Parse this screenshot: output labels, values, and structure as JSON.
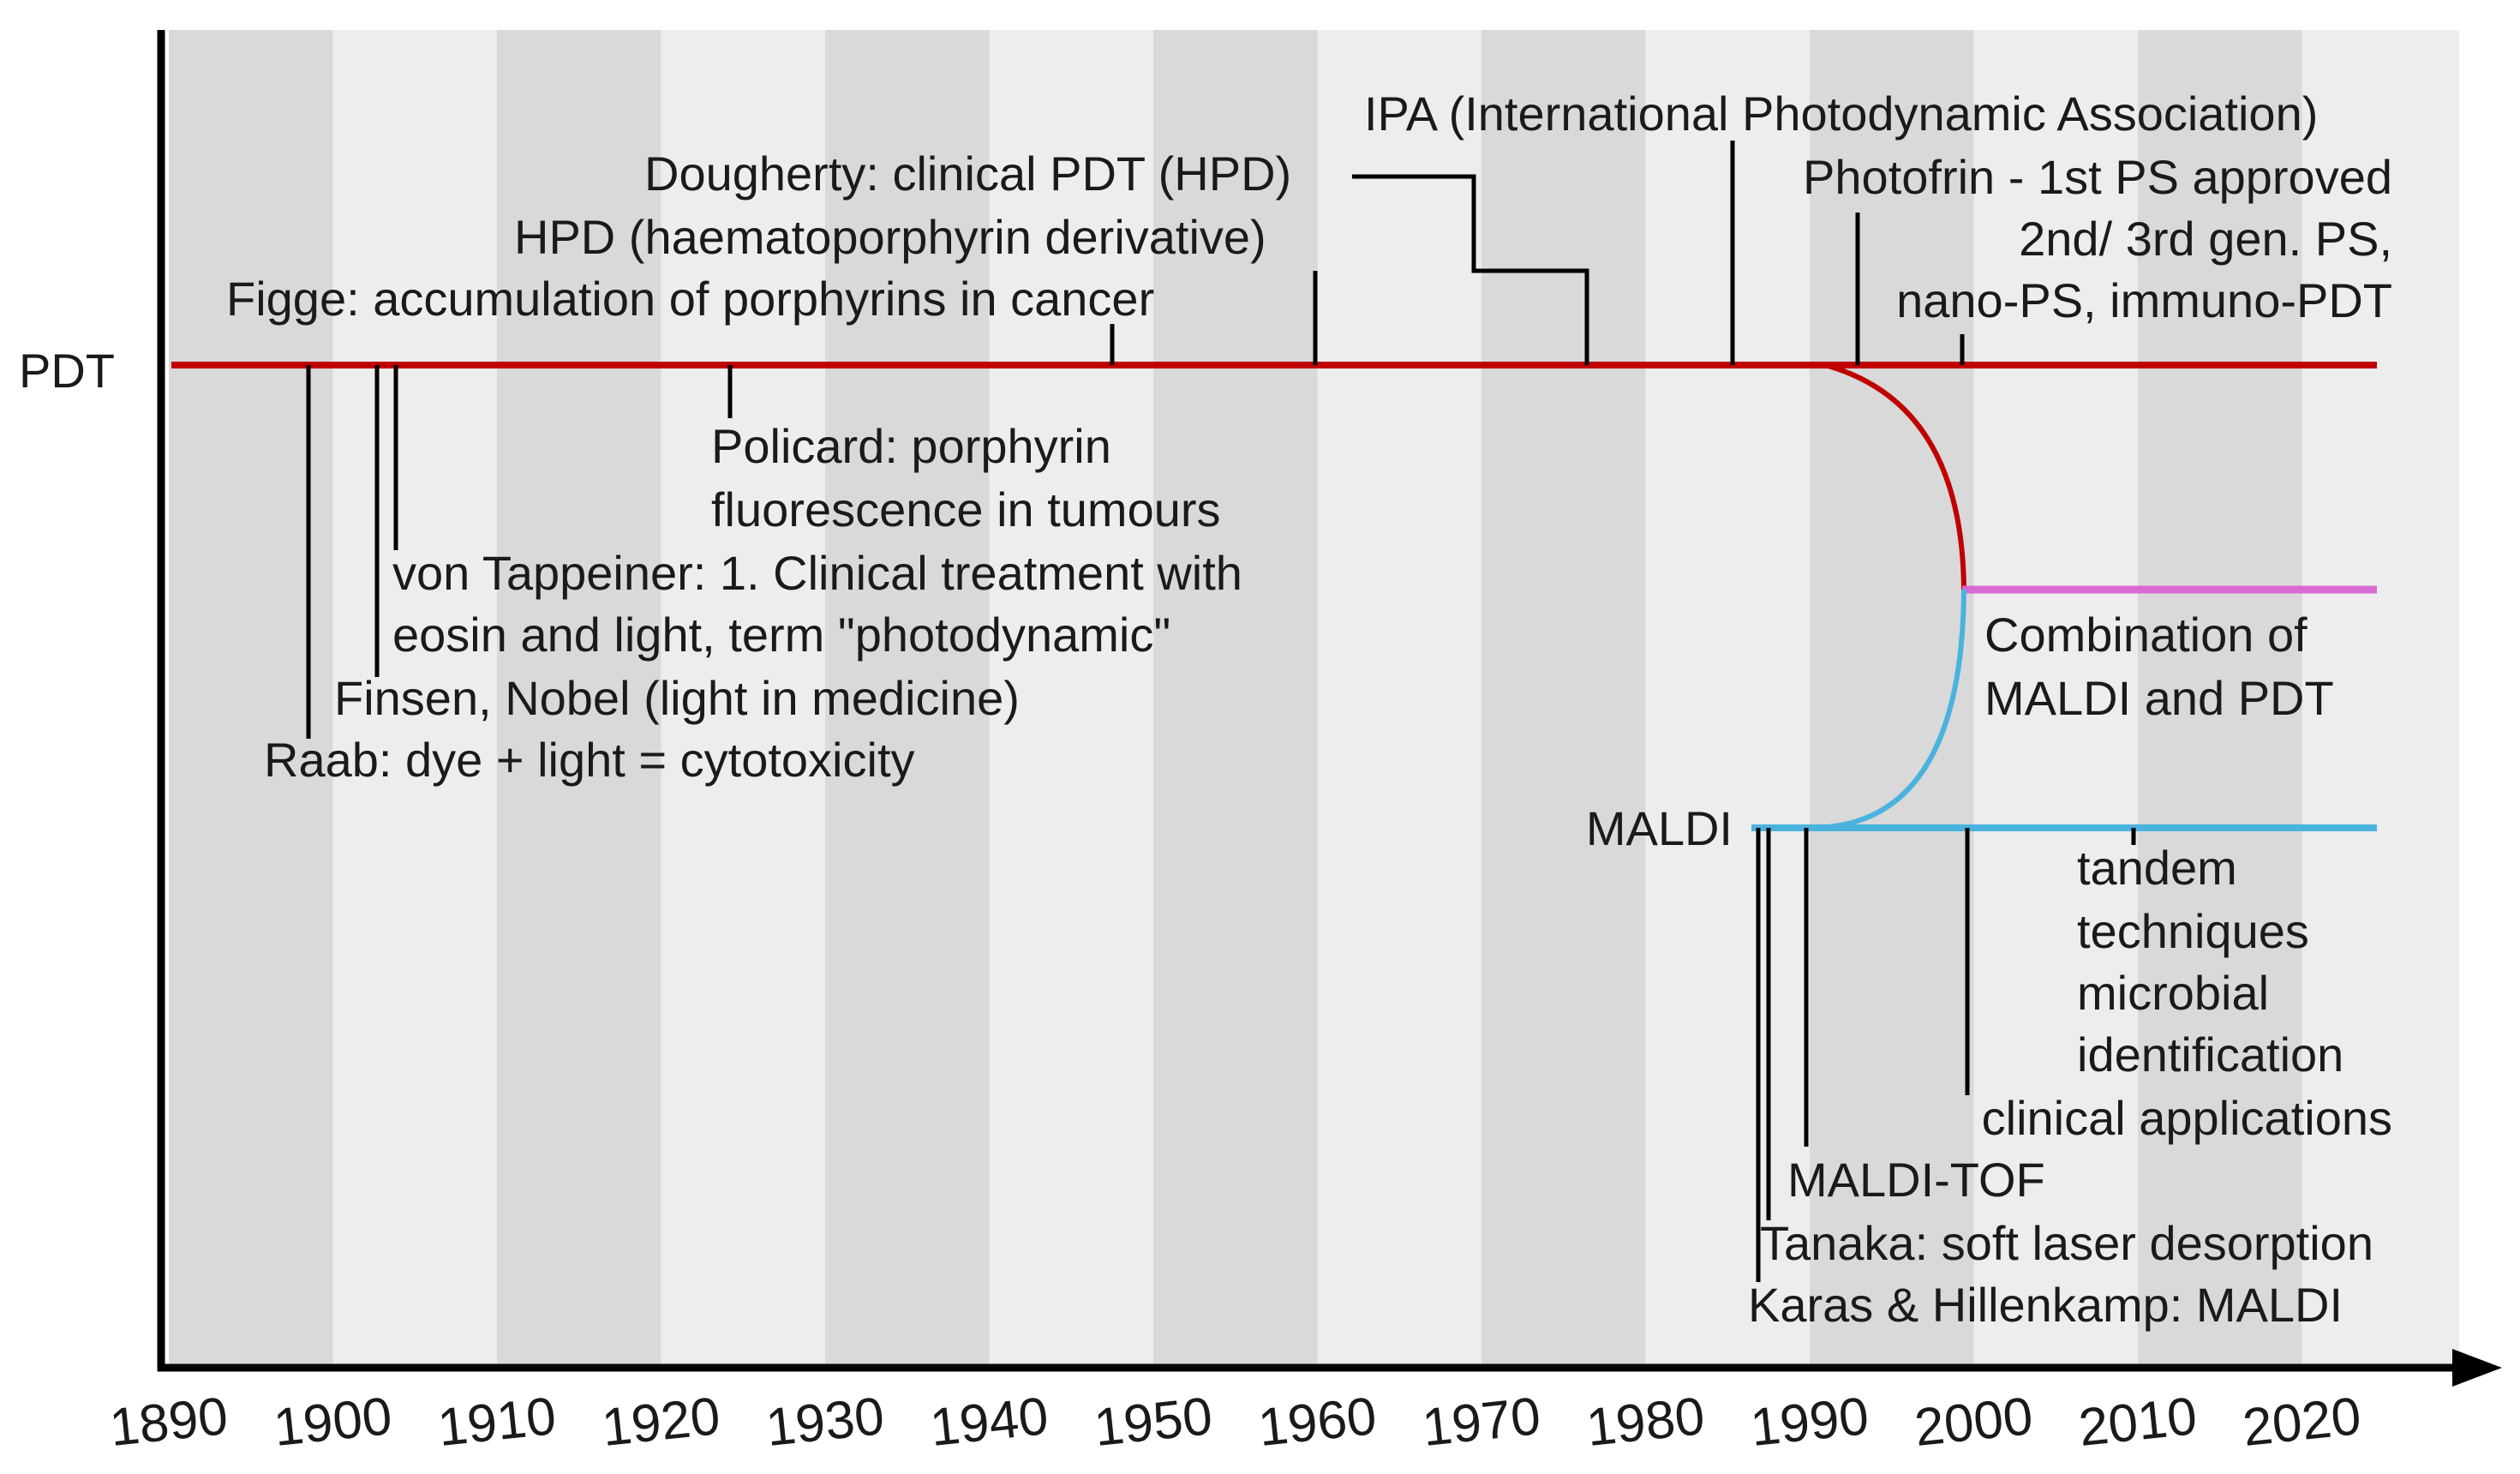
{
  "timeline": {
    "year_ticks": [
      "1890",
      "1900",
      "1910",
      "1920",
      "1930",
      "1940",
      "1950",
      "1960",
      "1970",
      "1980",
      "1990",
      "2000",
      "2010",
      "2020"
    ],
    "colors": {
      "pdt": "#c00000",
      "maldi": "#4ab3dd",
      "combination": "#d86ad2",
      "axis": "#000000"
    }
  },
  "tracks": {
    "pdt": "PDT",
    "maldi": "MALDI",
    "combination": [
      "Combination of",
      "MALDI and PDT"
    ]
  },
  "pdt_events": {
    "ipa": "IPA (International Photodynamic Association)",
    "dougherty": "Dougherty: clinical PDT (HPD)",
    "photofrin": "Photofrin - 1st PS approved",
    "hpd": "HPD (haematoporphyrin derivative)",
    "gen_ps_1": "2nd/ 3rd gen. PS,",
    "figge": "Figge: accumulation of porphyrins in cancer",
    "gen_ps_2": "nano-PS, immuno-PDT",
    "policard_1": "Policard: porphyrin",
    "policard_2": "fluorescence in tumours",
    "tappeiner_1": "von Tappeiner: 1. Clinical treatment with",
    "tappeiner_2": "eosin and light, term \"photodynamic\"",
    "finsen": "Finsen, Nobel (light in medicine)",
    "raab": "Raab: dye + light = cytotoxicity"
  },
  "maldi_events": {
    "tandem": [
      "tandem",
      "techniques",
      "microbial",
      "identification"
    ],
    "clinical": "clinical applications",
    "tof": "MALDI-TOF",
    "tanaka": "Tanaka: soft laser desorption",
    "karas": "Karas & Hillenkamp: MALDI"
  }
}
